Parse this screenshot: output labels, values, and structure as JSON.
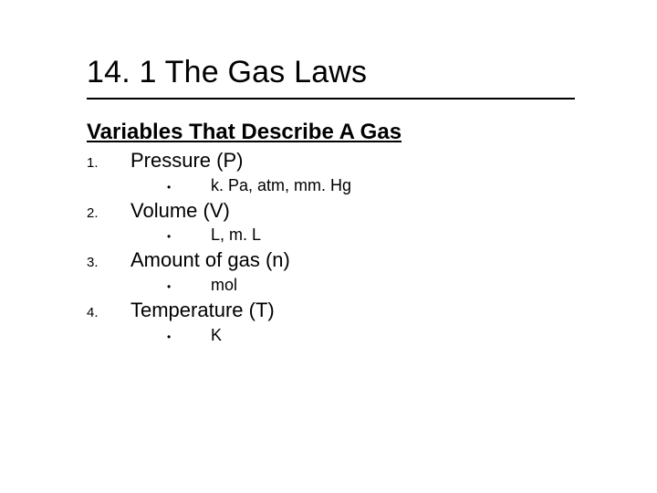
{
  "title": "14. 1  The Gas Laws",
  "subtitle": "Variables That Describe A Gas",
  "items": [
    {
      "num": "1.",
      "name": "Pressure (P)",
      "unit": "k. Pa, atm, mm. Hg"
    },
    {
      "num": "2.",
      "name": "Volume (V)",
      "unit": "L, m. L"
    },
    {
      "num": "3.",
      "name": "Amount of gas (n)",
      "unit": "mol"
    },
    {
      "num": "4.",
      "name": "Temperature (T)",
      "unit": "K"
    }
  ],
  "colors": {
    "background": "#ffffff",
    "text": "#000000",
    "rule": "#000000"
  },
  "typography": {
    "title_fontsize": 34,
    "subtitle_fontsize": 24,
    "variable_fontsize": 22,
    "number_fontsize": 15,
    "unit_fontsize": 18,
    "bullet_fontsize": 12,
    "title_family": "Arial",
    "body_family": "Verdana"
  },
  "bullet_glyph": "•"
}
